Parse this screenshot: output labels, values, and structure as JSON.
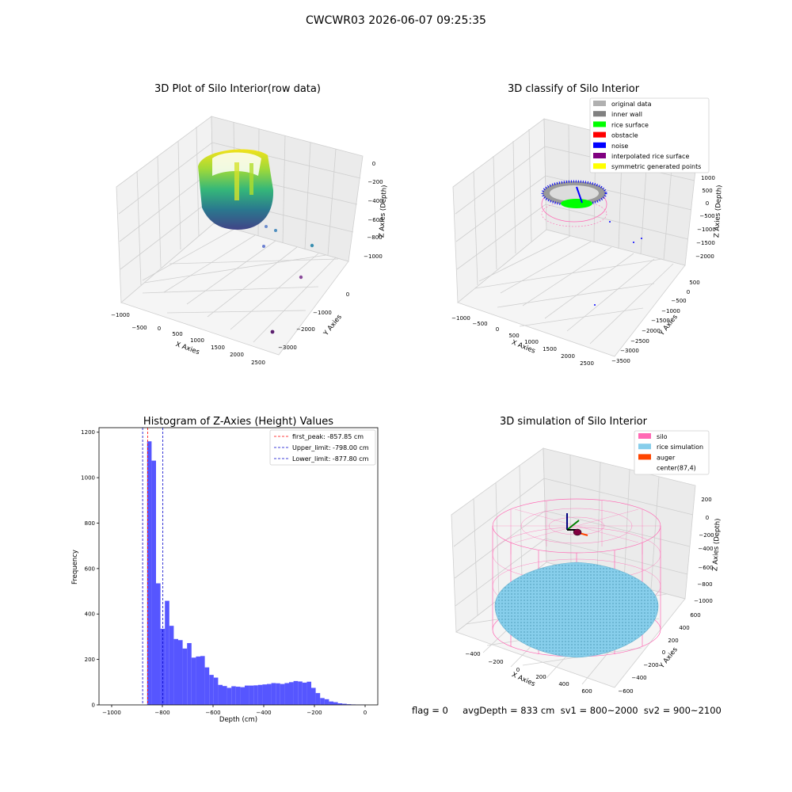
{
  "figure": {
    "suptitle": "CWCWR03 2026-06-07 09:25:35",
    "status_line": "flag = 0     avgDepth = 833 cm  sv1 = 800~2000  sv2 = 900~2100"
  },
  "colors": {
    "hist_bar": "#4d4dff",
    "first_peak": "#ff0000",
    "limit": "#0000cc",
    "silo": "#ff69b4",
    "rice": "#87ceeb",
    "auger": "#ff4500",
    "pane": "#f0f0f0",
    "grid": "#d9d9d9"
  },
  "panels": {
    "raw": {
      "title": "3D Plot of Silo Interior(row data)",
      "xlabel": "X Axies",
      "ylabel": "Y Axies",
      "zlabel": "Z Axies (Depth)",
      "xticks": [
        "−1000",
        "−500",
        "0",
        "500",
        "1000",
        "1500",
        "2000",
        "2500"
      ],
      "yticks": [
        "0",
        "−1000",
        "−2000",
        "−3000"
      ],
      "zticks": [
        "0",
        "−200",
        "−400",
        "−600",
        "−800",
        "−1000"
      ]
    },
    "classify": {
      "title": "3D classify of Silo Interior",
      "xlabel": "X Axies",
      "ylabel": "Y Axies",
      "zlabel": "Z Axies (Depth)",
      "xticks": [
        "−1000",
        "−500",
        "0",
        "500",
        "1000",
        "1500",
        "2000",
        "2500"
      ],
      "yticks": [
        "500",
        "0",
        "−500",
        "−1000",
        "−1500",
        "−2000",
        "−2500",
        "−3000",
        "−3500"
      ],
      "zticks": [
        "1000",
        "500",
        "0",
        "−500",
        "−1000",
        "−1500",
        "−2000"
      ],
      "legend": [
        {
          "label": "original data",
          "color": "#b0b0b0"
        },
        {
          "label": "inner wall",
          "color": "#808080"
        },
        {
          "label": "rice surface",
          "color": "#00ff00"
        },
        {
          "label": "obstacle",
          "color": "#ff0000"
        },
        {
          "label": "noise",
          "color": "#0000ff"
        },
        {
          "label": "interpolated rice surface",
          "color": "#800080"
        },
        {
          "label": "symmetric generated points",
          "color": "#ffff00"
        }
      ]
    },
    "simulation": {
      "title": "3D simulation of Silo Interior",
      "xlabel": "X Axies",
      "ylabel": "Y Axies",
      "zlabel": "Z Axies (Depth)",
      "xticks": [
        "−400",
        "−200",
        "0",
        "200",
        "400",
        "600"
      ],
      "yticks": [
        "600",
        "400",
        "200",
        "0",
        "−200",
        "−400",
        "−600"
      ],
      "zticks": [
        "200",
        "0",
        "−200",
        "−400",
        "−600",
        "−800",
        "−1000"
      ],
      "legend": [
        {
          "label": "silo",
          "color": "#ff69b4"
        },
        {
          "label": "rice simulation",
          "color": "#87ceeb"
        },
        {
          "label": "auger",
          "color": "#ff4500"
        },
        {
          "label": "center(87,4)",
          "color": ""
        }
      ]
    }
  },
  "chart_data": [
    {
      "type": "bar",
      "title": "Histogram of Z-Axies (Height) Values",
      "xlabel": "Depth (cm)",
      "ylabel": "Frequency",
      "xlim": [
        -1050,
        50
      ],
      "ylim": [
        0,
        1220
      ],
      "xticks": [
        -1000,
        -800,
        -600,
        -400,
        -200,
        0
      ],
      "xtick_labels": [
        "−1000",
        "−800",
        "−600",
        "−400",
        "−200",
        "0"
      ],
      "yticks": [
        0,
        200,
        400,
        600,
        800,
        1000,
        1200
      ],
      "bin_width": 17.5,
      "bin_starts": [
        -860,
        -842.5,
        -825,
        -807.5,
        -790,
        -772.5,
        -755,
        -737.5,
        -720,
        -702.5,
        -685,
        -667.5,
        -650,
        -632.5,
        -615,
        -597.5,
        -580,
        -562.5,
        -545,
        -527.5,
        -510,
        -492.5,
        -475,
        -457.5,
        -440,
        -422.5,
        -405,
        -387.5,
        -370,
        -352.5,
        -335,
        -317.5,
        -300,
        -282.5,
        -265,
        -247.5,
        -230,
        -212.5,
        -195,
        -177.5,
        -160,
        -142.5,
        -125,
        -107.5,
        -90,
        -72.5,
        -55,
        -37.5,
        -20
      ],
      "values": [
        1160,
        1075,
        535,
        335,
        458,
        348,
        290,
        285,
        248,
        272,
        208,
        213,
        215,
        165,
        132,
        120,
        88,
        83,
        75,
        82,
        80,
        78,
        85,
        85,
        86,
        88,
        90,
        92,
        96,
        95,
        92,
        96,
        100,
        105,
        103,
        98,
        102,
        75,
        52,
        30,
        25,
        15,
        12,
        7,
        5,
        3,
        2,
        1,
        1
      ],
      "lines": [
        {
          "label": "first_peak: -857.85 cm",
          "x": -857.85,
          "color": "#ff0000"
        },
        {
          "label": "Upper_limit: -798.00 cm",
          "x": -798.0,
          "color": "#0000cc"
        },
        {
          "label": "Lower_limit: -877.80 cm",
          "x": -877.8,
          "color": "#0000cc"
        }
      ],
      "legend_position": "top-right"
    }
  ]
}
